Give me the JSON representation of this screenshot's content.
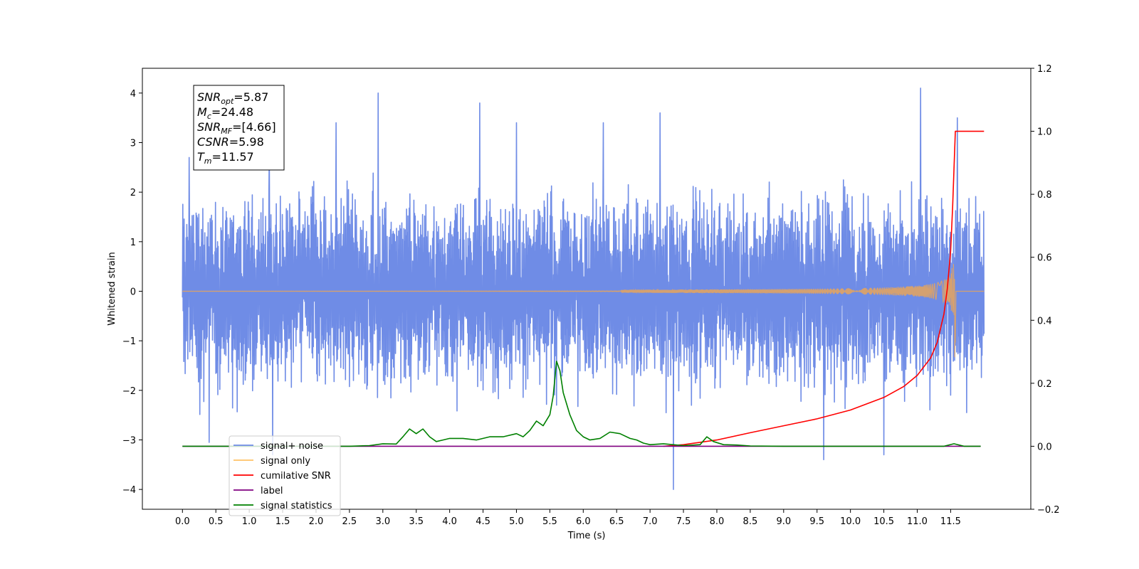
{
  "chart_data": {
    "type": "line",
    "xlabel": "Time (s)",
    "ylabel_left": "Whitened strain",
    "ylabel_right": "",
    "xlim": [
      -0.6,
      12.7
    ],
    "ylim_left": [
      -4.4,
      4.5
    ],
    "ylim_right": [
      -0.2,
      1.2
    ],
    "x_ticks": [
      "0.0",
      "0.5",
      "1.0",
      "1.5",
      "2.0",
      "2.5",
      "3.0",
      "3.5",
      "4.0",
      "4.5",
      "5.0",
      "5.5",
      "6.0",
      "6.5",
      "7.0",
      "7.5",
      "8.0",
      "8.5",
      "9.0",
      "9.5",
      "10.0",
      "10.5",
      "11.0",
      "11.5"
    ],
    "y_ticks_left": [
      "−4",
      "−3",
      "−2",
      "−1",
      "0",
      "1",
      "2",
      "3",
      "4"
    ],
    "y_ticks_right": [
      "−0.2",
      "0.0",
      "0.2",
      "0.4",
      "0.6",
      "0.8",
      "1.0",
      "1.2"
    ],
    "grid": false,
    "legend_position": "lower-left",
    "annotation": {
      "lines": [
        {
          "symbol": "SNR",
          "subscript": "opt",
          "value": "=5.87"
        },
        {
          "symbol": "M",
          "subscript": "c",
          "value": "=24.48"
        },
        {
          "symbol": "SNR",
          "subscript": "MF",
          "value": "=[4.66]"
        },
        {
          "symbol": "CSNR",
          "subscript": "",
          "value": "=5.98"
        },
        {
          "symbol": "T",
          "subscript": "m",
          "value": "=11.57"
        }
      ]
    },
    "series": [
      {
        "name": "signal+ noise",
        "axis": "left",
        "color": "#6f8ce6",
        "kind": "noise",
        "x_range": [
          0.0,
          12.0
        ],
        "typical_range": [
          -2.2,
          2.2
        ],
        "spikes": [
          {
            "x": 0.4,
            "y": -3.05
          },
          {
            "x": 0.1,
            "y": 2.7
          },
          {
            "x": 1.3,
            "y": 2.8
          },
          {
            "x": 1.35,
            "y": -3.3
          },
          {
            "x": 2.3,
            "y": 3.4
          },
          {
            "x": 2.93,
            "y": 4.0
          },
          {
            "x": 4.45,
            "y": 3.8
          },
          {
            "x": 5.0,
            "y": 3.4
          },
          {
            "x": 6.3,
            "y": 3.4
          },
          {
            "x": 7.15,
            "y": 3.6
          },
          {
            "x": 7.35,
            "y": -4.0
          },
          {
            "x": 9.6,
            "y": -3.4
          },
          {
            "x": 10.5,
            "y": -3.3
          },
          {
            "x": 11.05,
            "y": 4.1
          },
          {
            "x": 11.6,
            "y": 3.5
          }
        ]
      },
      {
        "name": "signal only",
        "axis": "left",
        "color": "#e8a45a",
        "kind": "chirp",
        "merger_time": 11.57,
        "peak_amplitude": 1.35
      },
      {
        "name": "cumilative SNR",
        "axis": "right",
        "color": "#ff0000",
        "x": [
          7.2,
          7.5,
          8.0,
          8.5,
          9.0,
          9.5,
          10.0,
          10.5,
          10.8,
          11.0,
          11.2,
          11.3,
          11.4,
          11.45,
          11.5,
          11.53,
          11.55,
          11.57,
          11.6,
          12.0
        ],
        "y": [
          0.0,
          0.005,
          0.02,
          0.043,
          0.065,
          0.087,
          0.115,
          0.155,
          0.19,
          0.225,
          0.28,
          0.33,
          0.42,
          0.5,
          0.62,
          0.76,
          0.88,
          1.0,
          1.0,
          1.0
        ]
      },
      {
        "name": "label",
        "axis": "right",
        "color": "#800080",
        "x": [
          0.0,
          11.95
        ],
        "y": [
          0.0,
          0.0
        ]
      },
      {
        "name": "signal statistics",
        "axis": "right",
        "color": "#008000",
        "x": [
          0.0,
          2.5,
          2.8,
          3.0,
          3.2,
          3.3,
          3.4,
          3.5,
          3.6,
          3.7,
          3.8,
          3.9,
          4.0,
          4.2,
          4.4,
          4.6,
          4.8,
          5.0,
          5.1,
          5.2,
          5.3,
          5.4,
          5.5,
          5.55,
          5.6,
          5.65,
          5.7,
          5.8,
          5.9,
          6.0,
          6.1,
          6.25,
          6.4,
          6.55,
          6.7,
          6.8,
          6.9,
          7.0,
          7.2,
          7.5,
          7.75,
          7.85,
          7.95,
          8.1,
          8.3,
          8.5,
          9.0,
          11.4,
          11.55,
          11.7,
          11.95
        ],
        "y": [
          0.0,
          0.0,
          0.002,
          0.008,
          0.007,
          0.03,
          0.055,
          0.04,
          0.055,
          0.03,
          0.015,
          0.02,
          0.025,
          0.025,
          0.02,
          0.03,
          0.03,
          0.04,
          0.03,
          0.05,
          0.08,
          0.065,
          0.1,
          0.16,
          0.27,
          0.24,
          0.17,
          0.1,
          0.05,
          0.03,
          0.02,
          0.025,
          0.045,
          0.04,
          0.025,
          0.02,
          0.01,
          0.005,
          0.008,
          0.002,
          0.005,
          0.03,
          0.015,
          0.005,
          0.004,
          0.001,
          0.0,
          0.0,
          0.008,
          0.0,
          0.0
        ]
      }
    ]
  }
}
